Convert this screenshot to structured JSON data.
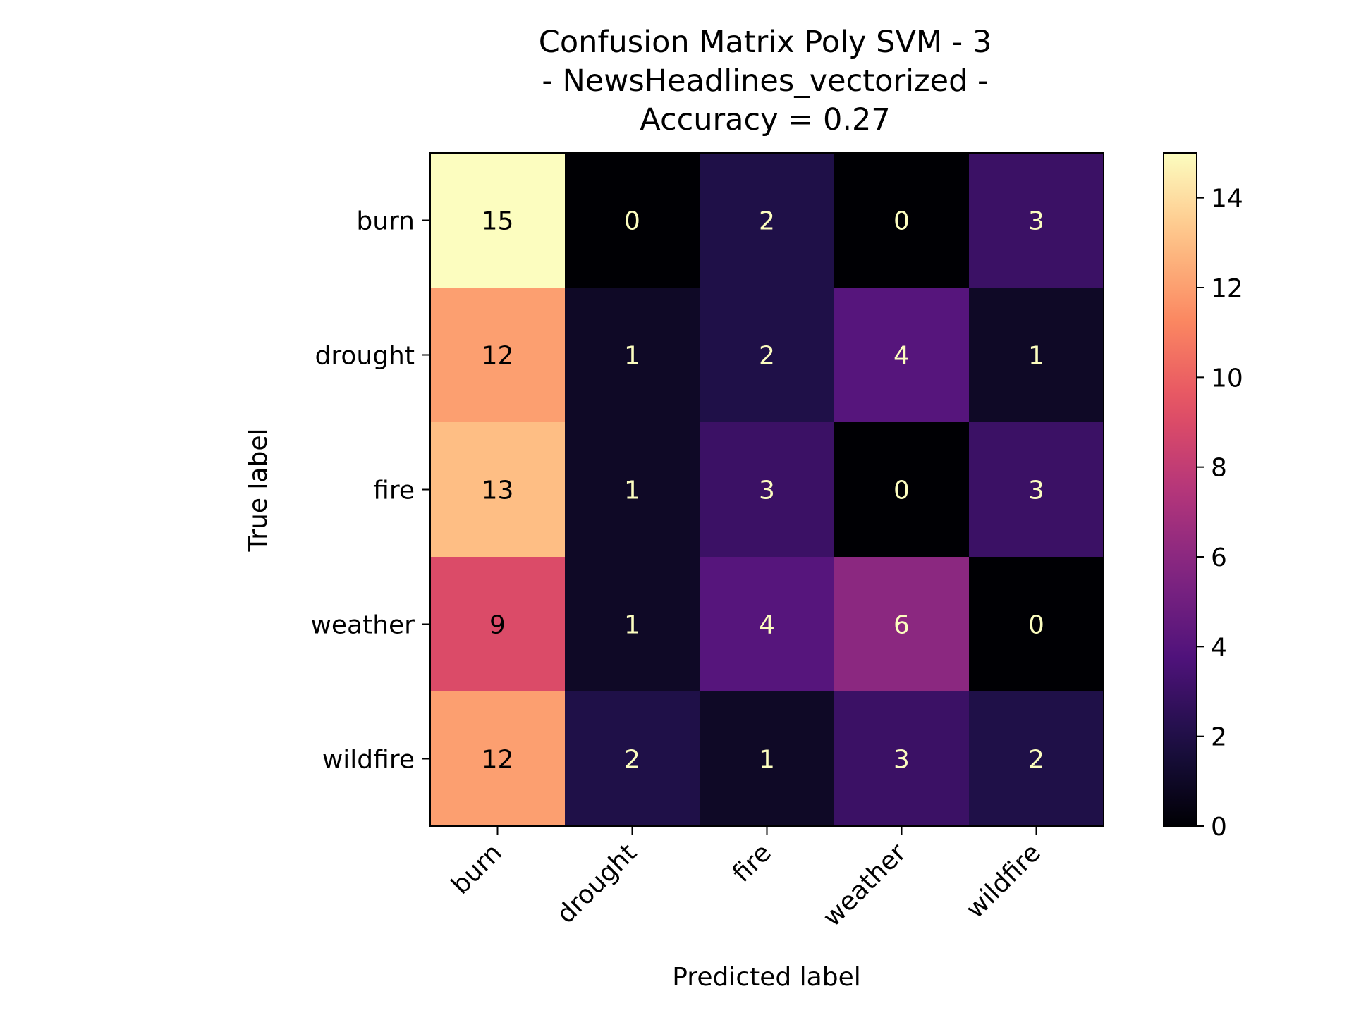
{
  "chart_data": {
    "type": "heatmap",
    "title_lines": [
      "Confusion Matrix Poly SVM - 3",
      " - NewsHeadlines_vectorized - ",
      "Accuracy = 0.27"
    ],
    "xlabel": "Predicted label",
    "ylabel": "True label",
    "x_categories": [
      "burn",
      "drought",
      "fire",
      "weather",
      "wildfire"
    ],
    "y_categories": [
      "burn",
      "drought",
      "fire",
      "weather",
      "wildfire"
    ],
    "matrix": [
      [
        15,
        0,
        2,
        0,
        3
      ],
      [
        12,
        1,
        2,
        4,
        1
      ],
      [
        13,
        1,
        3,
        0,
        3
      ],
      [
        9,
        1,
        4,
        6,
        0
      ],
      [
        12,
        2,
        1,
        3,
        2
      ]
    ],
    "colormap": "magma",
    "colorbar": {
      "min": 0,
      "max": 15,
      "ticks": [
        0,
        2,
        4,
        6,
        8,
        10,
        12,
        14
      ]
    },
    "text_colors": {
      "on_dark": "#fcfdbf",
      "on_light": "#000000"
    }
  }
}
